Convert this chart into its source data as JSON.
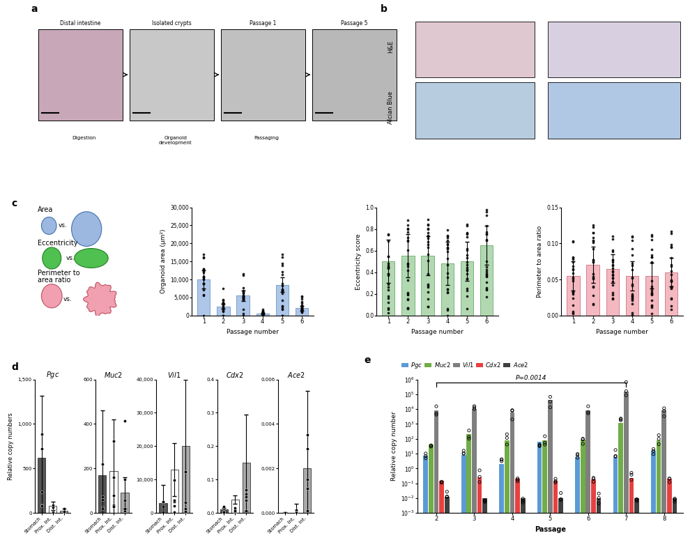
{
  "panel_a_labels": [
    "Distal intestine",
    "Isolated crypts",
    "Passage 1",
    "Passage 5"
  ],
  "panel_a_arrows": [
    "Digestion",
    "Organoid\ndevelopment",
    "Passaging"
  ],
  "panel_c_bar1_means": [
    10000,
    2500,
    5500,
    600,
    8500,
    2000
  ],
  "panel_c_bar1_errors": [
    2500,
    700,
    1500,
    200,
    2000,
    600
  ],
  "panel_c_bar1_color": "#aec6e8",
  "panel_c_bar1_edge": "#5588bb",
  "panel_c_bar1_ylim": [
    0,
    30000
  ],
  "panel_c_bar1_ylabel": "Organoid area (μm²)",
  "panel_c_bar1_yticks": [
    0,
    5000,
    10000,
    15000,
    20000,
    25000,
    30000
  ],
  "panel_c_bar1_ytick_labels": [
    "0",
    "5,000",
    "10,000",
    "15,000",
    "20,000",
    "25,000",
    "30,000"
  ],
  "panel_c_bar2_means": [
    0.5,
    0.55,
    0.55,
    0.48,
    0.5,
    0.65
  ],
  "panel_c_bar2_errors": [
    0.2,
    0.2,
    0.18,
    0.2,
    0.18,
    0.18
  ],
  "panel_c_bar2_color": "#b2d8b2",
  "panel_c_bar2_edge": "#50a050",
  "panel_c_bar2_ylim": [
    0,
    1.0
  ],
  "panel_c_bar2_ylabel": "Eccentricity score",
  "panel_c_bar2_yticks": [
    0.0,
    0.2,
    0.4,
    0.6,
    0.8,
    1.0
  ],
  "panel_c_bar3_means": [
    0.055,
    0.07,
    0.065,
    0.055,
    0.055,
    0.06
  ],
  "panel_c_bar3_errors": [
    0.02,
    0.025,
    0.02,
    0.02,
    0.018,
    0.02
  ],
  "panel_c_bar3_color": "#f4b8c0",
  "panel_c_bar3_edge": "#c06070",
  "panel_c_bar3_ylim": [
    0,
    0.15
  ],
  "panel_c_bar3_ylabel": "Perimeter to area ratio",
  "panel_c_bar3_yticks": [
    0.0,
    0.05,
    0.1,
    0.15
  ],
  "panel_d_genes": [
    "Pgc",
    "Muc2",
    "Vil1",
    "Cdx2",
    "Ace2"
  ],
  "panel_d_pgc_values": [
    620,
    80,
    25
  ],
  "panel_d_pgc_errors": [
    700,
    50,
    20
  ],
  "panel_d_pgc_ylim": [
    0,
    1500
  ],
  "panel_d_pgc_yticks": [
    0,
    500,
    1000,
    1500
  ],
  "panel_d_pgc_ytick_labels": [
    "0",
    "500",
    "1,000",
    "1,500"
  ],
  "panel_d_muc2_values": [
    170,
    190,
    90
  ],
  "panel_d_muc2_errors": [
    290,
    230,
    70
  ],
  "panel_d_muc2_ylim": [
    0,
    600
  ],
  "panel_d_muc2_yticks": [
    0,
    200,
    400,
    600
  ],
  "panel_d_muc2_ytick_labels": [
    "0",
    "200",
    "400",
    "600"
  ],
  "panel_d_vil1_values": [
    3000,
    13000,
    20000
  ],
  "panel_d_vil1_errors": [
    5500,
    8000,
    20000
  ],
  "panel_d_vil1_ylim": [
    0,
    40000
  ],
  "panel_d_vil1_yticks": [
    0,
    10000,
    20000,
    30000,
    40000
  ],
  "panel_d_vil1_ytick_labels": [
    "0",
    "10,000",
    "20,000",
    "30,000",
    "40,000"
  ],
  "panel_d_cdx2_values": [
    0.01,
    0.04,
    0.15
  ],
  "panel_d_cdx2_errors": [
    0.006,
    0.012,
    0.145
  ],
  "panel_d_cdx2_ylim": [
    0,
    0.4
  ],
  "panel_d_cdx2_yticks": [
    0.0,
    0.1,
    0.2,
    0.3,
    0.4
  ],
  "panel_d_cdx2_ytick_labels": [
    "0.0",
    "0.1",
    "0.2",
    "0.3",
    "0.4"
  ],
  "panel_d_ace2_values": [
    2e-05,
    2e-05,
    0.002
  ],
  "panel_d_ace2_errors": [
    1e-05,
    0.0004,
    0.0035
  ],
  "panel_d_ace2_ylim": [
    0,
    0.006
  ],
  "panel_d_ace2_yticks": [
    0.0,
    0.002,
    0.004,
    0.006
  ],
  "panel_d_ace2_ytick_labels": [
    "0.000",
    "0.002",
    "0.004",
    "0.006"
  ],
  "panel_d_bar_colors": [
    "#555555",
    "#ffffff",
    "#aaaaaa"
  ],
  "panel_d_bar_edgecolors": [
    "#333333",
    "#333333",
    "#333333"
  ],
  "panel_e_genes": [
    "Pgc",
    "Muc2",
    "Vil1",
    "Cdx2",
    "Ace2"
  ],
  "panel_e_colors": [
    "#5b9bd5",
    "#70ad47",
    "#7f7f7f",
    "#e84040",
    "#404040"
  ],
  "panel_e_passages": [
    2,
    3,
    4,
    5,
    6,
    7,
    8
  ],
  "panel_e_pgc": [
    7,
    8,
    2,
    60,
    6,
    6,
    15
  ],
  "panel_e_muc2": [
    40,
    200,
    80,
    80,
    90,
    1200,
    80
  ],
  "panel_e_vil1": [
    8000,
    10000,
    6000,
    40000,
    8000,
    150000,
    8000
  ],
  "panel_e_cdx2": [
    0.15,
    0.25,
    0.2,
    0.15,
    0.18,
    0.22,
    0.2
  ],
  "panel_e_ace2": [
    0.012,
    0.01,
    0.01,
    0.01,
    0.01,
    0.01,
    0.01
  ],
  "panel_e_ylabel": "Relative copy number",
  "panel_e_xlabel": "Passage",
  "bg_color": "#ffffff"
}
